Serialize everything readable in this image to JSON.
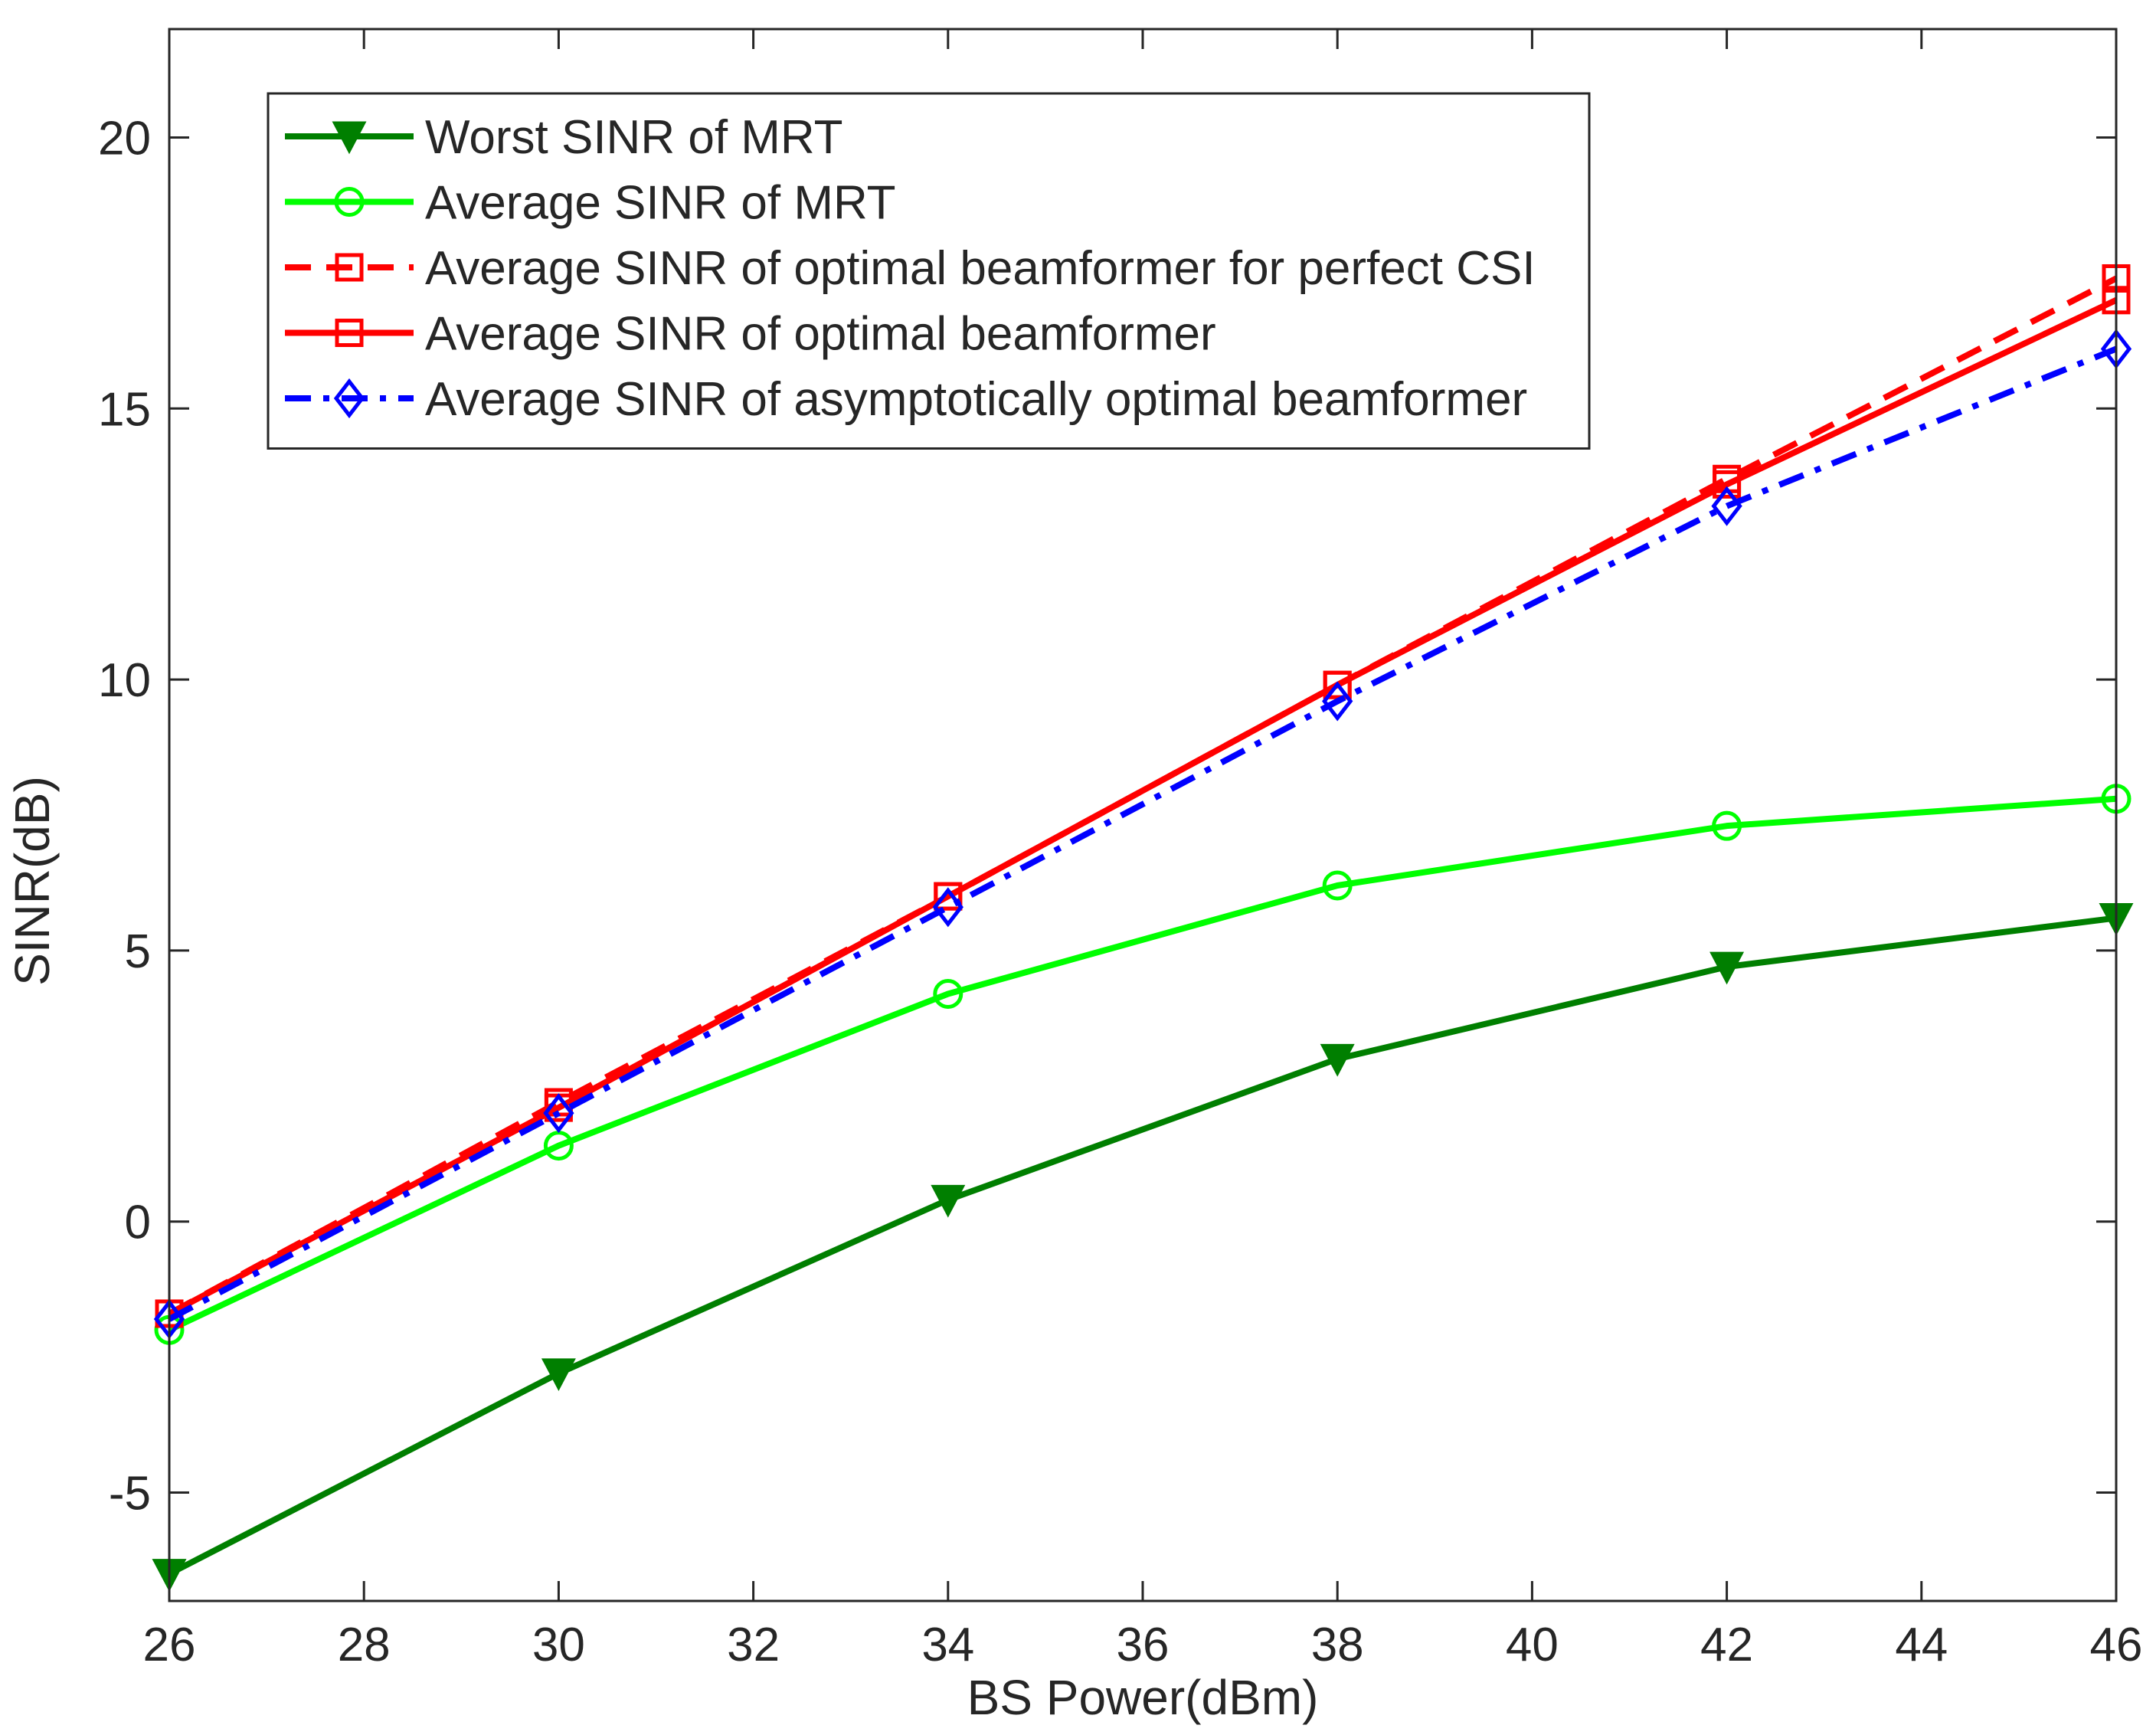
{
  "chart_data": {
    "type": "line",
    "title": "",
    "xlabel": "BS Power(dBm)",
    "ylabel": "SINR(dB)",
    "xlim": [
      26,
      46
    ],
    "ylim": [
      -7,
      22
    ],
    "xticks": [
      26,
      28,
      30,
      32,
      34,
      36,
      38,
      40,
      42,
      44,
      46
    ],
    "yticks": [
      -5,
      0,
      5,
      10,
      15,
      20
    ],
    "grid": false,
    "legend_position": "top-left",
    "x": [
      26,
      30,
      34,
      38,
      42,
      46
    ],
    "series": [
      {
        "name": "Worst SINR of MRT",
        "values": [
          -6.5,
          -2.8,
          0.4,
          3.0,
          4.7,
          5.6
        ],
        "color": "#007f00",
        "dash": "solid",
        "marker": "triangle-down"
      },
      {
        "name": "Average SINR of MRT",
        "values": [
          -2.0,
          1.4,
          4.2,
          6.2,
          7.3,
          7.8
        ],
        "color": "#00ff00",
        "dash": "solid",
        "marker": "circle"
      },
      {
        "name": "Average SINR of optimal beamformer for perfect CSI",
        "values": [
          -1.7,
          2.2,
          6.0,
          9.9,
          13.7,
          17.4
        ],
        "color": "#ff0000",
        "dash": "dashed",
        "marker": "square"
      },
      {
        "name": "Average SINR of optimal beamformer",
        "values": [
          -1.7,
          2.1,
          6.0,
          9.9,
          13.6,
          17.0
        ],
        "color": "#ff0000",
        "dash": "solid",
        "marker": "square"
      },
      {
        "name": "Average SINR of asymptotically optimal beamformer",
        "values": [
          -1.8,
          2.0,
          5.8,
          9.6,
          13.2,
          16.1
        ],
        "color": "#0000ff",
        "dash": "dashdot",
        "marker": "diamond"
      }
    ]
  }
}
